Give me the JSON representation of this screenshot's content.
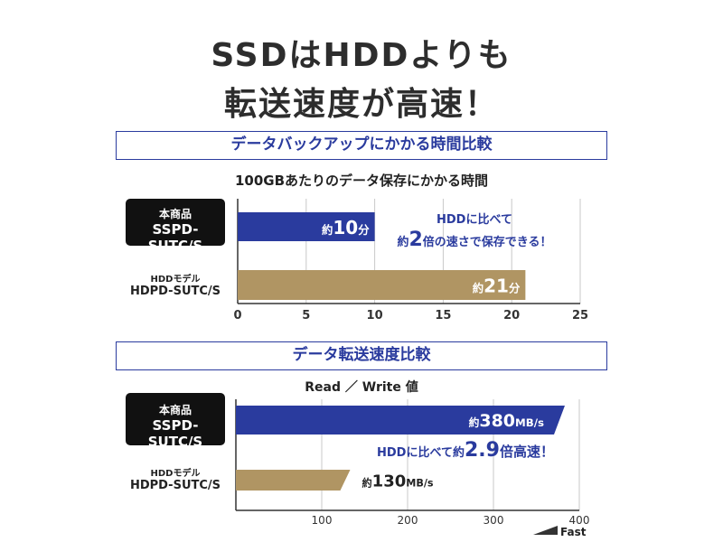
{
  "headline": {
    "line1": "SSDはHDDよりも",
    "line2": "転送速度が高速！"
  },
  "section1": {
    "title": "データバックアップにかかる時間比較",
    "subtitle": "100GBあたりのデータ保存にかかる時間",
    "product_label": {
      "line1": "本商品",
      "line2": "SSPD-SUTC/S"
    },
    "hdd_label": {
      "line1": "HDDモデル",
      "line2": "HDPD-SUTC/S"
    },
    "note_line1": "HDDに比べて",
    "note_line2_prefix": "約",
    "note_line2_num": "2",
    "note_line2_suffix": "倍の速さで保存できる！",
    "bar_labels": [
      {
        "prefix": "約",
        "num": "10",
        "unit": "分"
      },
      {
        "prefix": "約",
        "num": "21",
        "unit": "分"
      }
    ]
  },
  "section2": {
    "title": "データ転送速度比較",
    "subtitle": "Read ／ Write 値",
    "product_label": {
      "line1": "本商品",
      "line2": "SSPD-SUTC/S"
    },
    "hdd_label": {
      "line1": "HDDモデル",
      "line2": "HDPD-SUTC/S"
    },
    "note_prefix": "HDDに比べて約",
    "note_num": "2.9",
    "note_suffix": "倍高速！",
    "fast_label": "Fast",
    "bar_labels": [
      {
        "prefix": "約",
        "num": "380",
        "unit": "MB/s"
      },
      {
        "prefix": "約",
        "num": "130",
        "unit": "MB/s"
      }
    ]
  },
  "colors": {
    "ssd": "#2a3b9e",
    "hdd": "#b09563",
    "grid": "#c8c8c8",
    "axis": "#333333"
  },
  "chart_data": [
    {
      "type": "bar",
      "orientation": "horizontal",
      "title": "データバックアップにかかる時間比較",
      "subtitle": "100GBあたりのデータ保存にかかる時間",
      "categories": [
        "本商品 SSPD-SUTC/S",
        "HDDモデル HDPD-SUTC/S"
      ],
      "values": [
        10,
        21
      ],
      "xlim": [
        0,
        25
      ],
      "xticks": [
        0,
        5,
        10,
        15,
        20,
        25
      ],
      "grid": true
    },
    {
      "type": "bar",
      "orientation": "horizontal",
      "title": "データ転送速度比較",
      "subtitle": "Read ／ Write 値",
      "categories": [
        "本商品 SSPD-SUTC/S",
        "HDDモデル HDPD-SUTC/S"
      ],
      "values": [
        380,
        130
      ],
      "xlim": [
        0,
        400
      ],
      "xticks": [
        100,
        200,
        300,
        400
      ],
      "grid": true
    }
  ]
}
